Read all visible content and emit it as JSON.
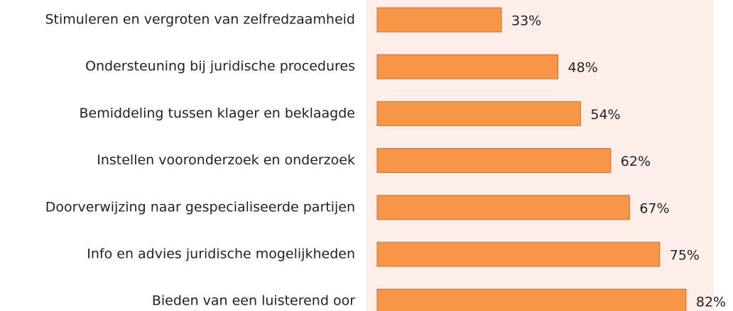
{
  "chart_data": {
    "type": "barh",
    "categories": [
      "Stimuleren en vergroten van zelfredzaamheid",
      "Ondersteuning bij juridische procedures",
      "Bemiddeling tussen klager en beklaagde",
      "Instellen vooronderzoek en onderzoek",
      "Doorverwijzing naar gespecialiseerde partijen",
      "Info en advies juridische mogelijkheden",
      "Bieden van een luisterend oor"
    ],
    "values": [
      33,
      48,
      54,
      62,
      67,
      75,
      82
    ],
    "value_labels": [
      "33%",
      "48%",
      "54%",
      "62%",
      "67%",
      "75%",
      "82%"
    ],
    "color": "#f79646",
    "xlim": [
      0,
      89
    ]
  }
}
